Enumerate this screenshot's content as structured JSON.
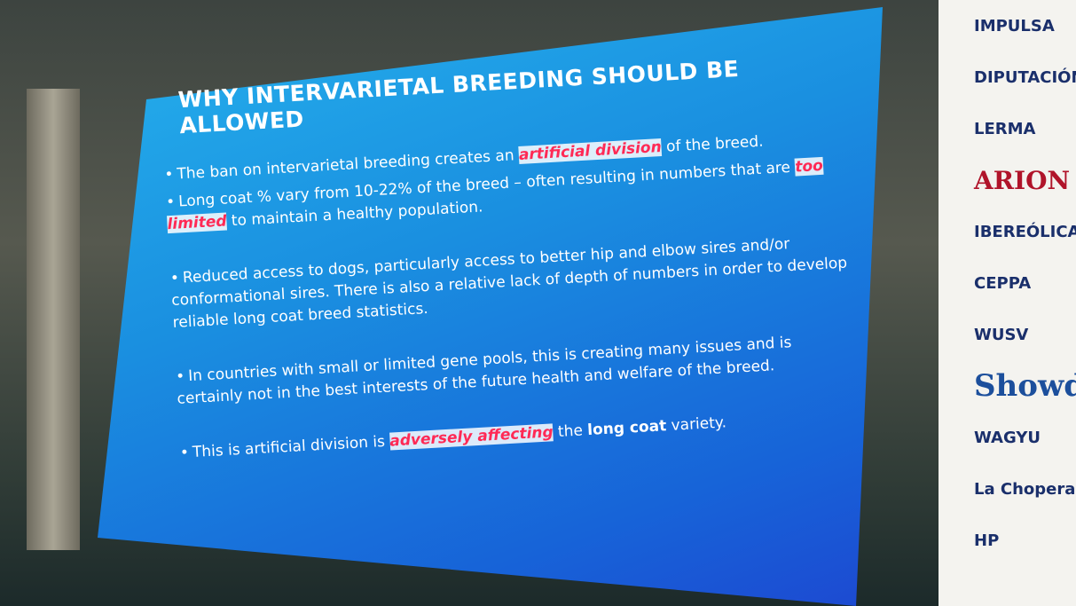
{
  "slide": {
    "title": "WHY INTERVARIETAL BREEDING SHOULD BE ALLOWED",
    "bullets": [
      {
        "parts": [
          {
            "text": "The ban on intervarietal breeding creates an "
          },
          {
            "text": "artificial division",
            "style": "highlight"
          },
          {
            "text": " of the breed."
          }
        ]
      },
      {
        "parts": [
          {
            "text": "Long coat % vary from 10-22% of the breed – often resulting in numbers that are "
          },
          {
            "text": "too limited",
            "style": "highlight"
          },
          {
            "text": " to maintain a healthy population."
          }
        ]
      },
      {
        "parts": [
          {
            "text": "Reduced access to dogs, particularly access to better hip and elbow sires and/or conformational sires. There is also a relative lack of depth of numbers in order to develop reliable long coat breed statistics."
          }
        ]
      },
      {
        "parts": [
          {
            "text": "In countries with small or limited gene pools, this is creating many issues and is certainly not in the best interests of the future health and welfare of the breed."
          }
        ]
      },
      {
        "parts": [
          {
            "text": "This is artificial division is "
          },
          {
            "text": "adversely affecting",
            "style": "highlight"
          },
          {
            "text": " the "
          },
          {
            "text": "long coat",
            "style": "bold"
          },
          {
            "text": " variety."
          }
        ]
      }
    ]
  },
  "sponsors": [
    "IMPULSA",
    "DIPUTACIÓN DE BURGOS",
    "LERMA",
    "ARION",
    "IBEREÓLICA",
    "CEPPA",
    "WUSV",
    "Showdogs",
    "WAGYU",
    "La Chopera",
    "HP"
  ]
}
